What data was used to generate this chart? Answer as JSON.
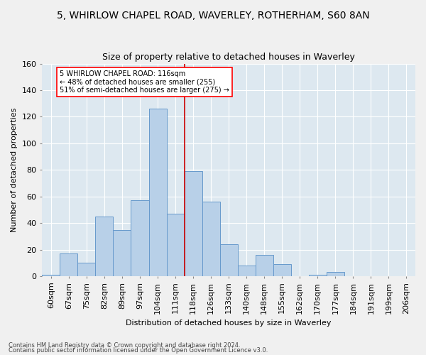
{
  "title": "5, WHIRLOW CHAPEL ROAD, WAVERLEY, ROTHERHAM, S60 8AN",
  "subtitle": "Size of property relative to detached houses in Waverley",
  "xlabel": "Distribution of detached houses by size in Waverley",
  "ylabel": "Number of detached properties",
  "footer1": "Contains HM Land Registry data © Crown copyright and database right 2024.",
  "footer2": "Contains public sector information licensed under the Open Government Licence v3.0.",
  "bin_labels": [
    "60sqm",
    "67sqm",
    "75sqm",
    "82sqm",
    "89sqm",
    "97sqm",
    "104sqm",
    "111sqm",
    "118sqm",
    "126sqm",
    "133sqm",
    "140sqm",
    "148sqm",
    "155sqm",
    "162sqm",
    "170sqm",
    "177sqm",
    "184sqm",
    "191sqm",
    "199sqm",
    "206sqm"
  ],
  "bar_values": [
    1,
    17,
    10,
    45,
    35,
    57,
    126,
    47,
    79,
    56,
    24,
    8,
    16,
    9,
    0,
    1,
    3,
    0,
    0,
    0,
    0
  ],
  "bar_color": "#b8d0e8",
  "bar_edge_color": "#6699cc",
  "annotation_text": "5 WHIRLOW CHAPEL ROAD: 116sqm\n← 48% of detached houses are smaller (255)\n51% of semi-detached houses are larger (275) →",
  "vline_x_index": 7,
  "vline_color": "#cc0000",
  "ylim": [
    0,
    160
  ],
  "yticks": [
    0,
    20,
    40,
    60,
    80,
    100,
    120,
    140,
    160
  ],
  "bg_color": "#dde8f0",
  "grid_color": "#ffffff",
  "title_fontsize": 10,
  "subtitle_fontsize": 9,
  "xlabel_fontsize": 8,
  "ylabel_fontsize": 8,
  "tick_fontsize": 8,
  "annot_fontsize": 7,
  "footer_fontsize": 6
}
